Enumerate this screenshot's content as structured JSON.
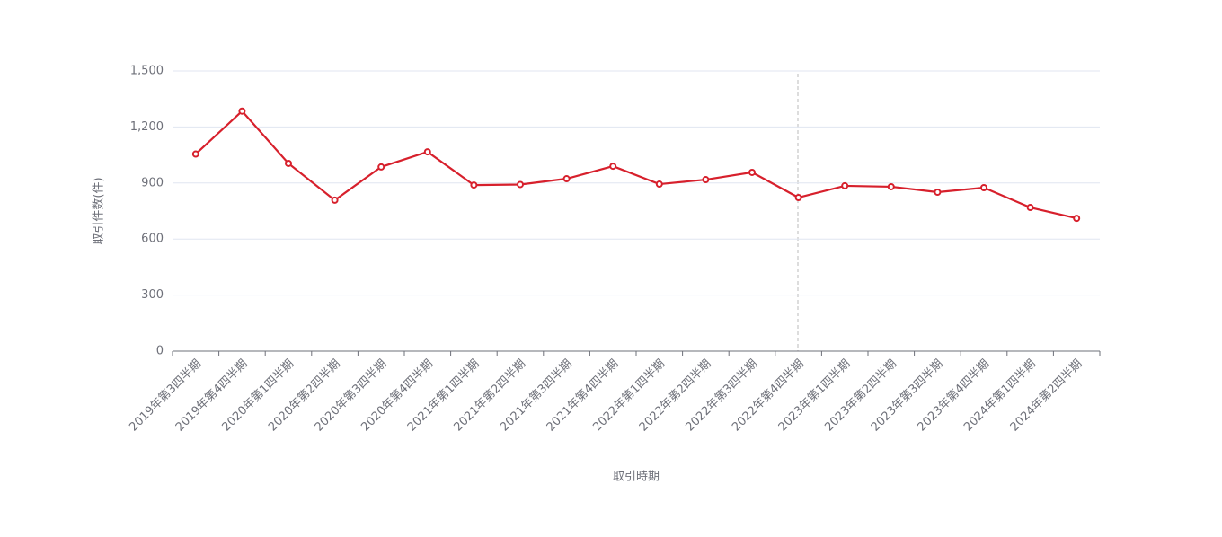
{
  "chart_data": {
    "type": "line",
    "y_label": "取引件数(件)",
    "x_label": "取引時期",
    "categories": [
      "2019年第3四半期",
      "2019年第4四半期",
      "2020年第1四半期",
      "2020年第2四半期",
      "2020年第3四半期",
      "2020年第4四半期",
      "2021年第1四半期",
      "2021年第2四半期",
      "2021年第3四半期",
      "2021年第4四半期",
      "2022年第1四半期",
      "2022年第2四半期",
      "2022年第3四半期",
      "2022年第4四半期",
      "2023年第1四半期",
      "2023年第2四半期",
      "2023年第3四半期",
      "2023年第4四半期",
      "2024年第1四半期",
      "2024年第2四半期"
    ],
    "values": [
      1055,
      1285,
      1005,
      808,
      986,
      1067,
      889,
      892,
      923,
      990,
      894,
      918,
      957,
      822,
      885,
      880,
      851,
      875,
      769,
      711
    ],
    "color": "#d7202c",
    "ylim": [
      0,
      1500
    ],
    "yticks": [
      0,
      300,
      600,
      900,
      {
        "value": 1200,
        "label": "1,200"
      },
      {
        "value": 1500,
        "label": "1,500"
      }
    ],
    "grid": true
  }
}
